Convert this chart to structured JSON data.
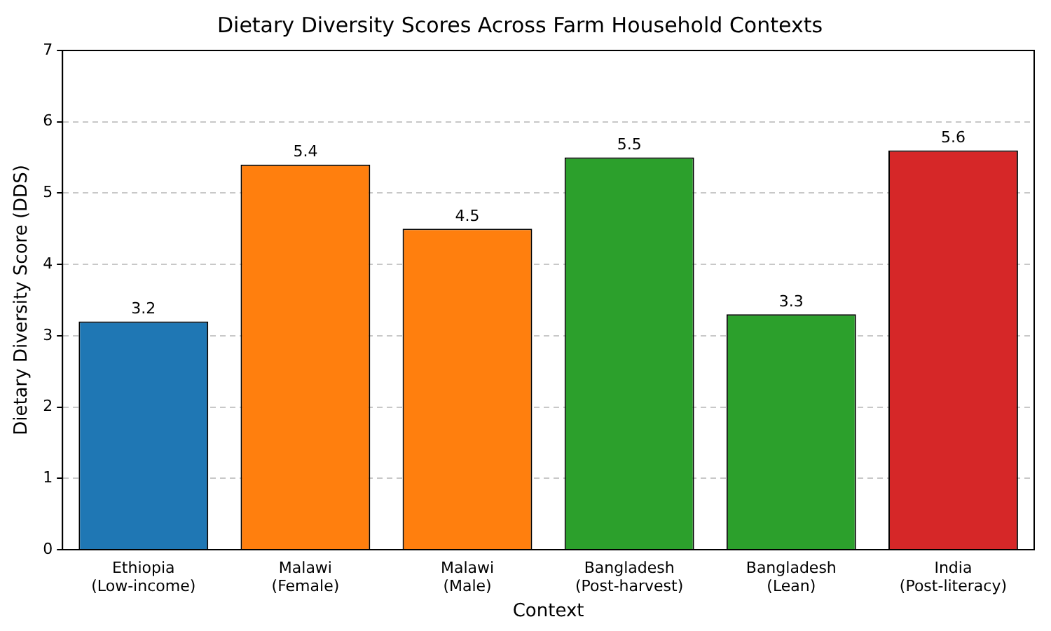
{
  "chart_data": {
    "type": "bar",
    "title": "Dietary Diversity Scores Across Farm Household Contexts",
    "xlabel": "Context",
    "ylabel": "Dietary Diversity Score (DDS)",
    "categories": [
      "Ethiopia\n(Low-income)",
      "Malawi\n(Female)",
      "Malawi\n(Male)",
      "Bangladesh\n(Post-harvest)",
      "Bangladesh\n(Lean)",
      "India\n(Post-literacy)"
    ],
    "values": [
      3.2,
      5.4,
      4.5,
      5.5,
      3.3,
      5.6
    ],
    "colors": [
      "#1f77b4",
      "#ff7f0e",
      "#ff7f0e",
      "#2ca02c",
      "#2ca02c",
      "#d62728"
    ],
    "ylim": [
      0,
      7
    ],
    "yticks": [
      0,
      1,
      2,
      3,
      4,
      5,
      6,
      7
    ],
    "grid": "y",
    "data_labels": true
  }
}
